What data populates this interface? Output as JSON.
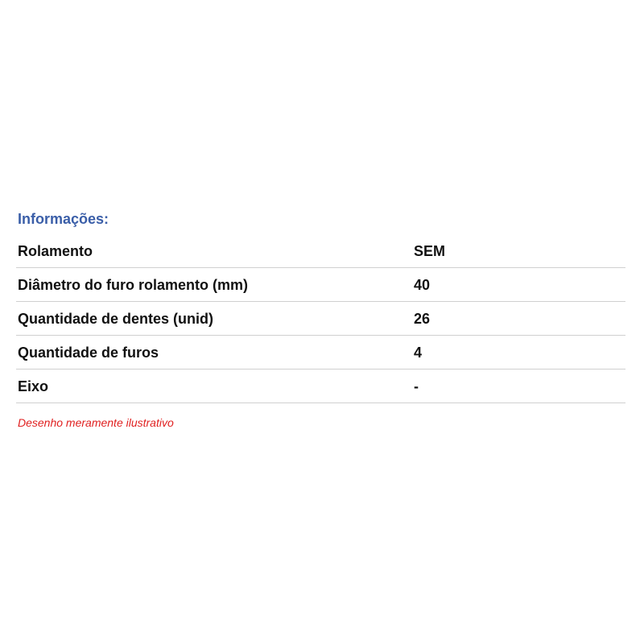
{
  "title": "Informações:",
  "rows": [
    {
      "label": "Rolamento",
      "value": "SEM"
    },
    {
      "label": "Diâmetro do furo rolamento (mm)",
      "value": "40"
    },
    {
      "label": "Quantidade de dentes (unid)",
      "value": "26"
    },
    {
      "label": "Quantidade de furos",
      "value": "4"
    },
    {
      "label": "Eixo",
      "value": "-"
    }
  ],
  "note": "Desenho meramente ilustrativo",
  "colors": {
    "title": "#3a5ea8",
    "note": "#e02020"
  }
}
